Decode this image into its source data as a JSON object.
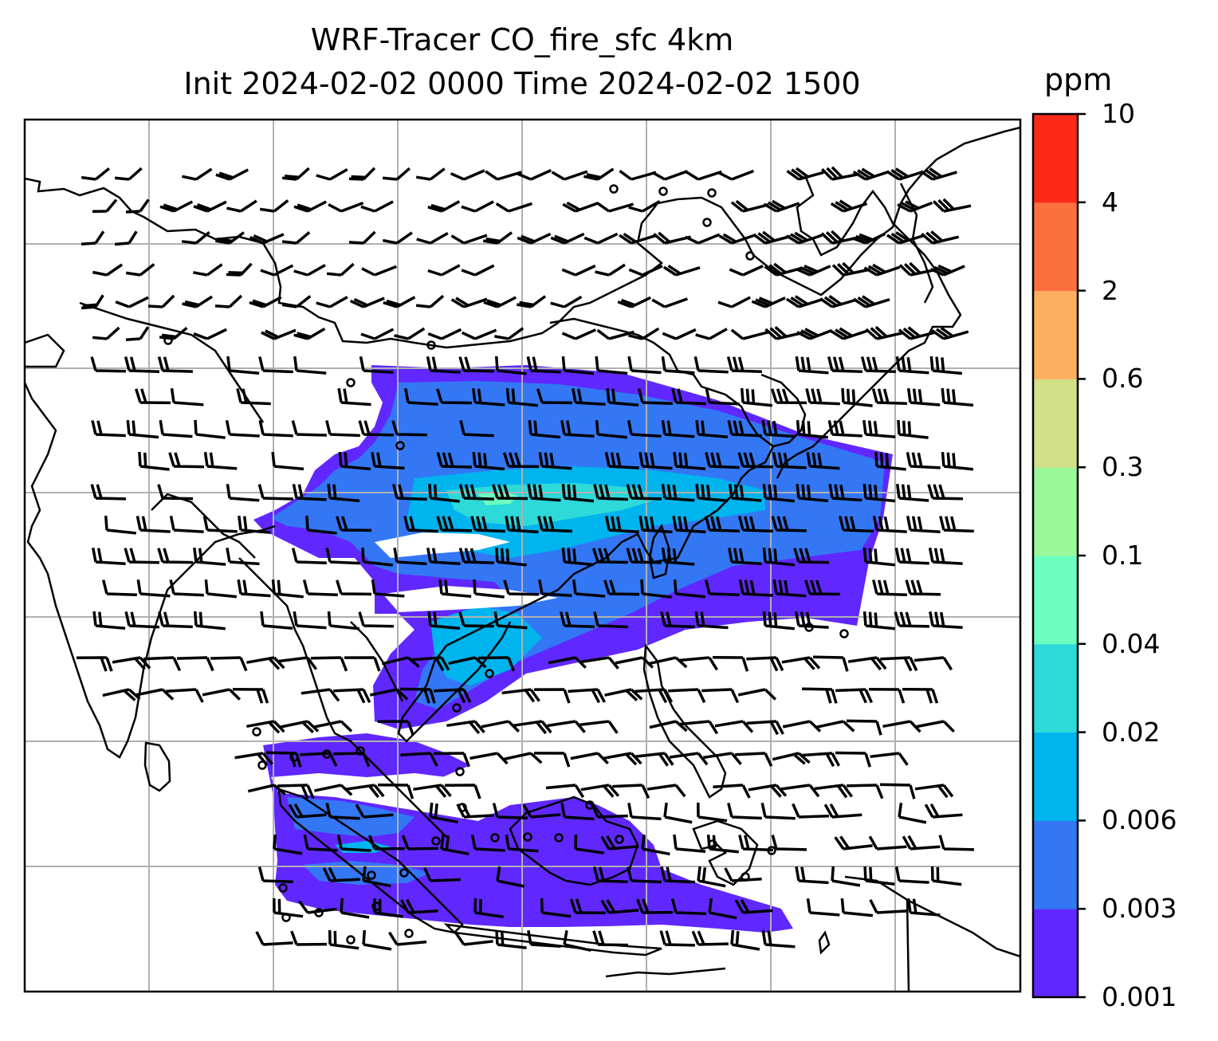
{
  "title": {
    "line1": "WRF-Tracer CO_fire_sfc 4km",
    "line2": "Init 2024-02-02 0000 Time 2024-02-02 1500"
  },
  "colorbar": {
    "unit": "ppm",
    "levels": [
      "0.001",
      "0.003",
      "0.006",
      "0.02",
      "0.04",
      "0.1",
      "0.3",
      "0.6",
      "2",
      "4",
      "10"
    ],
    "colors": [
      "#6028ff",
      "#3377f5",
      "#00b4ee",
      "#2ed9d9",
      "#6cffc0",
      "#9af79a",
      "#d2e088",
      "#fcb060",
      "#fc7040",
      "#fb2a16"
    ]
  },
  "map": {
    "background": "#ffffff",
    "gridline_color": "#b0b0b0",
    "coastline_color": "#000000",
    "wind_barb_color": "#000000",
    "plume_colors": {
      "lowest": "#6028ff",
      "low": "#3377f5",
      "mid": "#00b4ee",
      "upper": "#2ed9d9",
      "peak": "#6cffc0"
    }
  }
}
